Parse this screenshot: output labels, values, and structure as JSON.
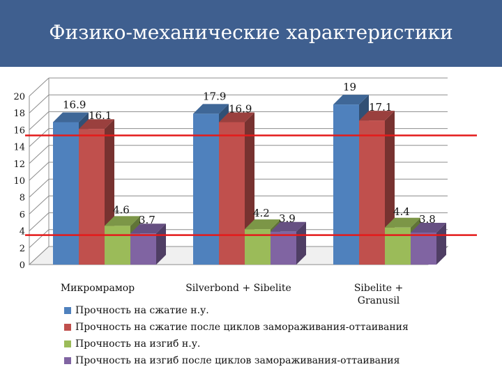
{
  "header": {
    "title": "Физико-механические характеристики"
  },
  "chart_data": {
    "type": "bar",
    "categories": [
      "Микромрамор",
      "Silverbond + Sibelite",
      "Sibelite + Granusil"
    ],
    "series": [
      {
        "name": "Прочность на сжатие н.у.",
        "values": [
          16.9,
          17.9,
          19
        ],
        "labels": [
          "16.9",
          "17.9",
          "19"
        ],
        "color": "#4f81bd"
      },
      {
        "name": "Прочность на сжатие  после циклов замораживания-оттаивания",
        "values": [
          16.1,
          16.9,
          17.1
        ],
        "labels": [
          "16.1",
          "16.9",
          "17.1"
        ],
        "color": "#c0504d"
      },
      {
        "name": "Прочность на изгиб н.у.",
        "values": [
          4.6,
          4.2,
          4.4
        ],
        "labels": [
          "4.6",
          "4.2",
          "4.4"
        ],
        "color": "#9bbb59"
      },
      {
        "name": "Прочность на изгиб после циклов замораживания-оттаивания",
        "values": [
          3.7,
          3.9,
          3.8
        ],
        "labels": [
          "3.7",
          "3.9",
          "3.8"
        ],
        "color": "#8064a2"
      }
    ],
    "y_ticks": [
      "0",
      "2",
      "4",
      "6",
      "8",
      "10",
      "12",
      "14",
      "16",
      "18",
      "20"
    ],
    "ylim": [
      0,
      20
    ],
    "reference_lines": [
      15,
      3.5
    ],
    "reference_line_color": "#e41a1a",
    "grid": true,
    "legend_position": "bottom-left"
  }
}
